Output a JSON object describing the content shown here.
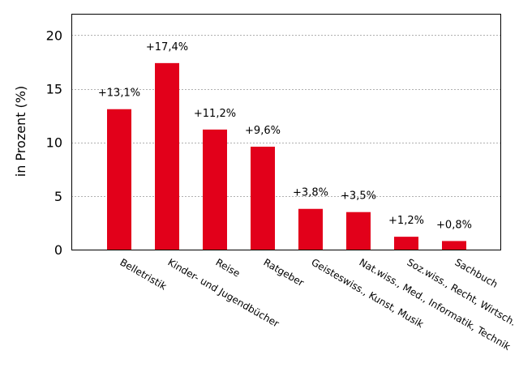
{
  "chart_data": {
    "type": "bar",
    "categories": [
      "Belletristik",
      "Kinder- und Jugendbücher",
      "Reise",
      "Ratgeber",
      "Geisteswiss., Kunst, Musik",
      "Nat.wiss., Med., Informatik, Technik",
      "Soz.wiss., Recht, Wirtsch.",
      "Sachbuch"
    ],
    "values": [
      13.1,
      17.4,
      11.2,
      9.6,
      3.8,
      3.5,
      1.2,
      0.8
    ],
    "data_labels": [
      "+13,1%",
      "+17,4%",
      "+11,2%",
      "+9,6%",
      "+3,8%",
      "+3,5%",
      "+1,2%",
      "+0,8%"
    ],
    "ylabel": "in Prozent (%)",
    "ylim": [
      0,
      22
    ],
    "yticks": [
      0,
      5,
      10,
      15,
      20
    ],
    "bar_color": "#e2001a",
    "grid": true
  }
}
